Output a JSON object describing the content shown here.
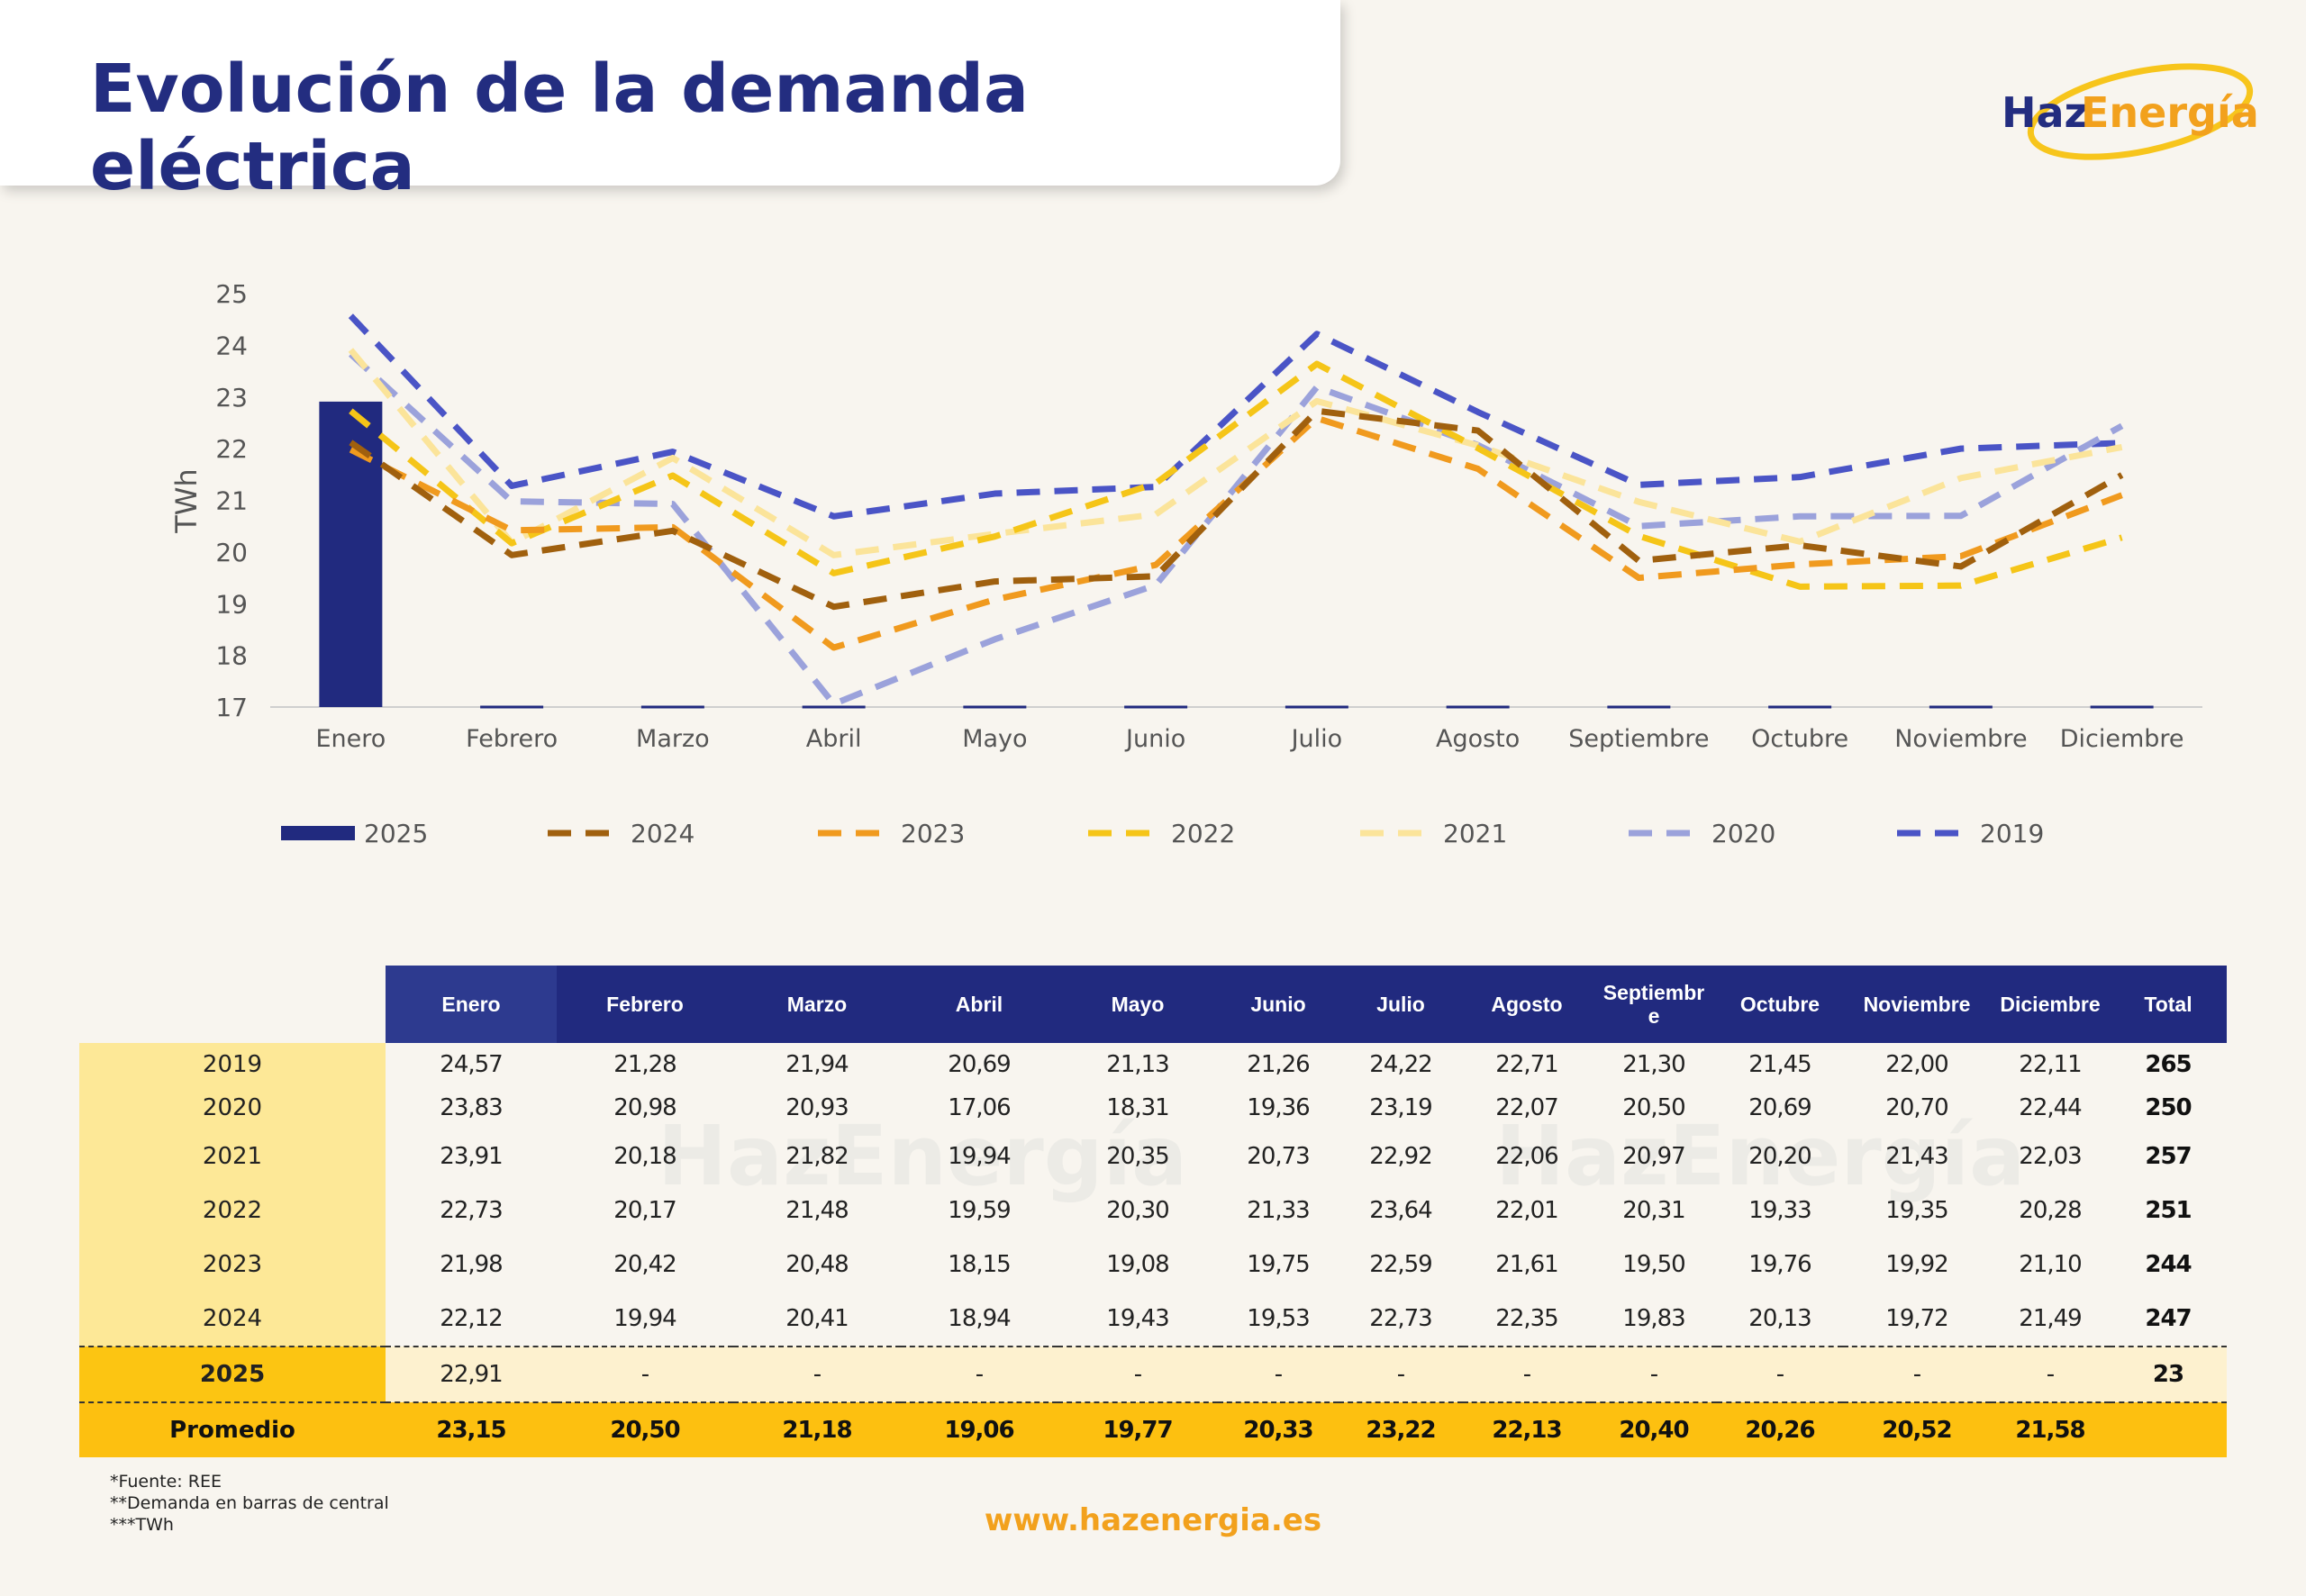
{
  "header": {
    "title": "Evolución de la demanda eléctrica",
    "logo_text_part1": "Haz",
    "logo_text_part2": "Energía"
  },
  "colors": {
    "navy": "#232d80",
    "logo_yellow": "#f7c51c",
    "logo_orange": "#f2a11d"
  },
  "chart_data": {
    "type": "line",
    "ylabel": "TWh",
    "xlabel": "",
    "ylim": [
      17,
      25
    ],
    "yticks": [
      17,
      18,
      19,
      20,
      21,
      22,
      23,
      24,
      25
    ],
    "categories": [
      "Enero",
      "Febrero",
      "Marzo",
      "Abril",
      "Mayo",
      "Junio",
      "Julio",
      "Agosto",
      "Septiembre",
      "Octubre",
      "Noviembre",
      "Diciembre"
    ],
    "bar_series": {
      "name": "2025",
      "type": "bar",
      "color": "#212a7f",
      "values": [
        22.91,
        null,
        null,
        null,
        null,
        null,
        null,
        null,
        null,
        null,
        null,
        null
      ]
    },
    "series": [
      {
        "name": "2024",
        "color": "#a0600e",
        "style": "dashed",
        "values": [
          22.12,
          19.94,
          20.41,
          18.94,
          19.43,
          19.53,
          22.73,
          22.35,
          19.83,
          20.13,
          19.72,
          21.49
        ]
      },
      {
        "name": "2023",
        "color": "#f09a1e",
        "style": "dashed",
        "values": [
          21.98,
          20.42,
          20.48,
          18.15,
          19.08,
          19.75,
          22.59,
          21.61,
          19.5,
          19.76,
          19.92,
          21.1
        ]
      },
      {
        "name": "2022",
        "color": "#f5c518",
        "style": "dashed",
        "values": [
          22.73,
          20.17,
          21.48,
          19.59,
          20.3,
          21.33,
          23.64,
          22.01,
          20.31,
          19.33,
          19.35,
          20.28
        ]
      },
      {
        "name": "2021",
        "color": "#fbe49a",
        "style": "dashed",
        "values": [
          23.91,
          20.18,
          21.82,
          19.94,
          20.35,
          20.73,
          22.92,
          22.06,
          20.97,
          20.2,
          21.43,
          22.03
        ]
      },
      {
        "name": "2020",
        "color": "#9ba2db",
        "style": "dashed",
        "values": [
          23.83,
          20.98,
          20.93,
          17.06,
          18.31,
          19.36,
          23.19,
          22.07,
          20.5,
          20.69,
          20.7,
          22.44
        ]
      },
      {
        "name": "2019",
        "color": "#4a54c6",
        "style": "dashed",
        "values": [
          24.57,
          21.28,
          21.94,
          20.69,
          21.13,
          21.26,
          24.22,
          22.71,
          21.3,
          21.45,
          22.0,
          22.11
        ]
      }
    ],
    "legend_order": [
      "2025",
      "2024",
      "2023",
      "2022",
      "2021",
      "2020",
      "2019"
    ],
    "legend_position": "bottom",
    "grid": false
  },
  "table": {
    "headers": [
      "Enero",
      "Febrero",
      "Marzo",
      "Abril",
      "Mayo",
      "Junio",
      "Julio",
      "Agosto",
      "Septiembr\ne",
      "Octubre",
      "Noviembre",
      "Diciembre",
      "Total"
    ],
    "rows": [
      {
        "label": "2019",
        "cells": [
          "24,57",
          "21,28",
          "21,94",
          "20,69",
          "21,13",
          "21,26",
          "24,22",
          "22,71",
          "21,30",
          "21,45",
          "22,00",
          "22,11",
          "265"
        ]
      },
      {
        "label": "2020",
        "cells": [
          "23,83",
          "20,98",
          "20,93",
          "17,06",
          "18,31",
          "19,36",
          "23,19",
          "22,07",
          "20,50",
          "20,69",
          "20,70",
          "22,44",
          "250"
        ]
      },
      {
        "label": "2021",
        "cells": [
          "23,91",
          "20,18",
          "21,82",
          "19,94",
          "20,35",
          "20,73",
          "22,92",
          "22,06",
          "20,97",
          "20,20",
          "21,43",
          "22,03",
          "257"
        ]
      },
      {
        "label": "2022",
        "cells": [
          "22,73",
          "20,17",
          "21,48",
          "19,59",
          "20,30",
          "21,33",
          "23,64",
          "22,01",
          "20,31",
          "19,33",
          "19,35",
          "20,28",
          "251"
        ]
      },
      {
        "label": "2023",
        "cells": [
          "21,98",
          "20,42",
          "20,48",
          "18,15",
          "19,08",
          "19,75",
          "22,59",
          "21,61",
          "19,50",
          "19,76",
          "19,92",
          "21,10",
          "244"
        ]
      },
      {
        "label": "2024",
        "cells": [
          "22,12",
          "19,94",
          "20,41",
          "18,94",
          "19,43",
          "19,53",
          "22,73",
          "22,35",
          "19,83",
          "20,13",
          "19,72",
          "21,49",
          "247"
        ]
      },
      {
        "label": "2025",
        "cells": [
          "22,91",
          "-",
          "-",
          "-",
          "-",
          "-",
          "-",
          "-",
          "-",
          "-",
          "-",
          "-",
          "23"
        ]
      }
    ],
    "average": {
      "label": "Promedio",
      "cells": [
        "23,15",
        "20,50",
        "21,18",
        "19,06",
        "19,77",
        "20,33",
        "23,22",
        "22,13",
        "20,40",
        "20,26",
        "20,52",
        "21,58",
        ""
      ]
    }
  },
  "footer": {
    "notes": [
      "*Fuente: REE",
      "**Demanda en barras de central",
      "***TWh"
    ],
    "website": "www.hazenergia.es"
  }
}
